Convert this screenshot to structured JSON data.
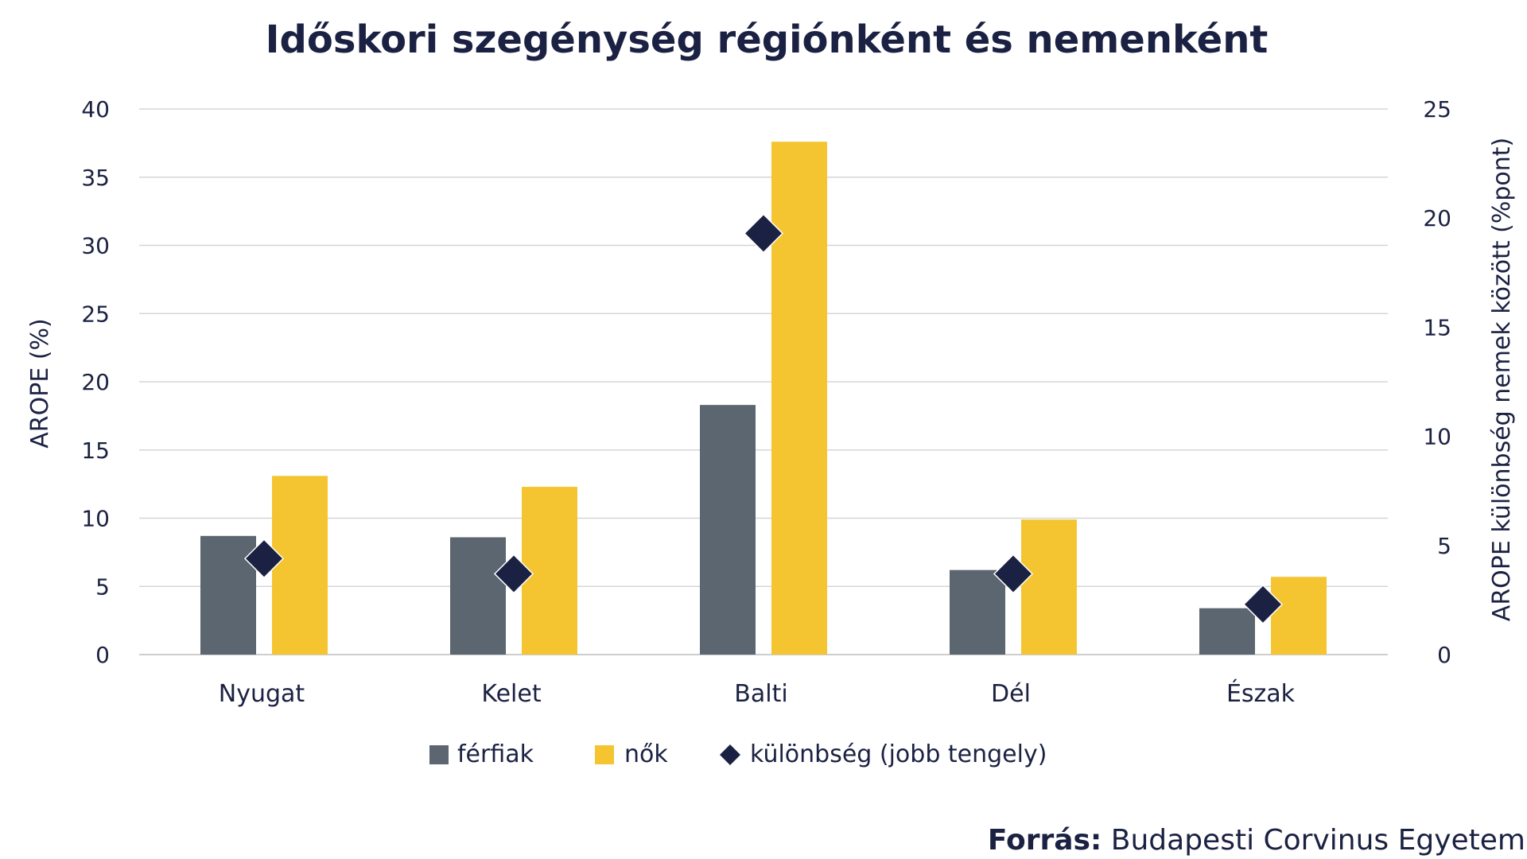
{
  "colors": {
    "ferfiak": "#5b6670",
    "nok": "#f4c531",
    "kulonbseg": "#1b2142",
    "text": "#1b2142",
    "grid": "#d6d6d6"
  },
  "chart_data": {
    "type": "bar",
    "title": "Időskori szegénység régiónként és nemenként",
    "categories": [
      "Nyugat",
      "Kelet",
      "Balti",
      "Dél",
      "Észak"
    ],
    "series": [
      {
        "name": "férfiak",
        "type": "bar",
        "axis": "left",
        "values": [
          8.7,
          8.6,
          18.3,
          6.2,
          3.4
        ]
      },
      {
        "name": "nők",
        "type": "bar",
        "axis": "left",
        "values": [
          13.1,
          12.3,
          37.6,
          9.9,
          5.7
        ]
      },
      {
        "name": "különbség (jobb tengely)",
        "type": "scatter",
        "marker": "diamond",
        "axis": "right",
        "values": [
          4.4,
          3.7,
          19.3,
          3.7,
          2.3
        ]
      }
    ],
    "ylabel": "AROPE (%)",
    "ylabel_right": "AROPE különbség nemek között (%pont)",
    "ylim": [
      0,
      40
    ],
    "ylim_right": [
      0,
      25
    ],
    "yticks": [
      "0",
      "5",
      "10",
      "15",
      "20",
      "25",
      "30",
      "35",
      "40"
    ],
    "yticks_right": [
      "0",
      "5",
      "10",
      "15",
      "20",
      "25"
    ],
    "grid": true,
    "legend_position": "bottom-center"
  },
  "source": {
    "label": "Forrás:",
    "text": " Budapesti Corvinus Egyetem"
  }
}
